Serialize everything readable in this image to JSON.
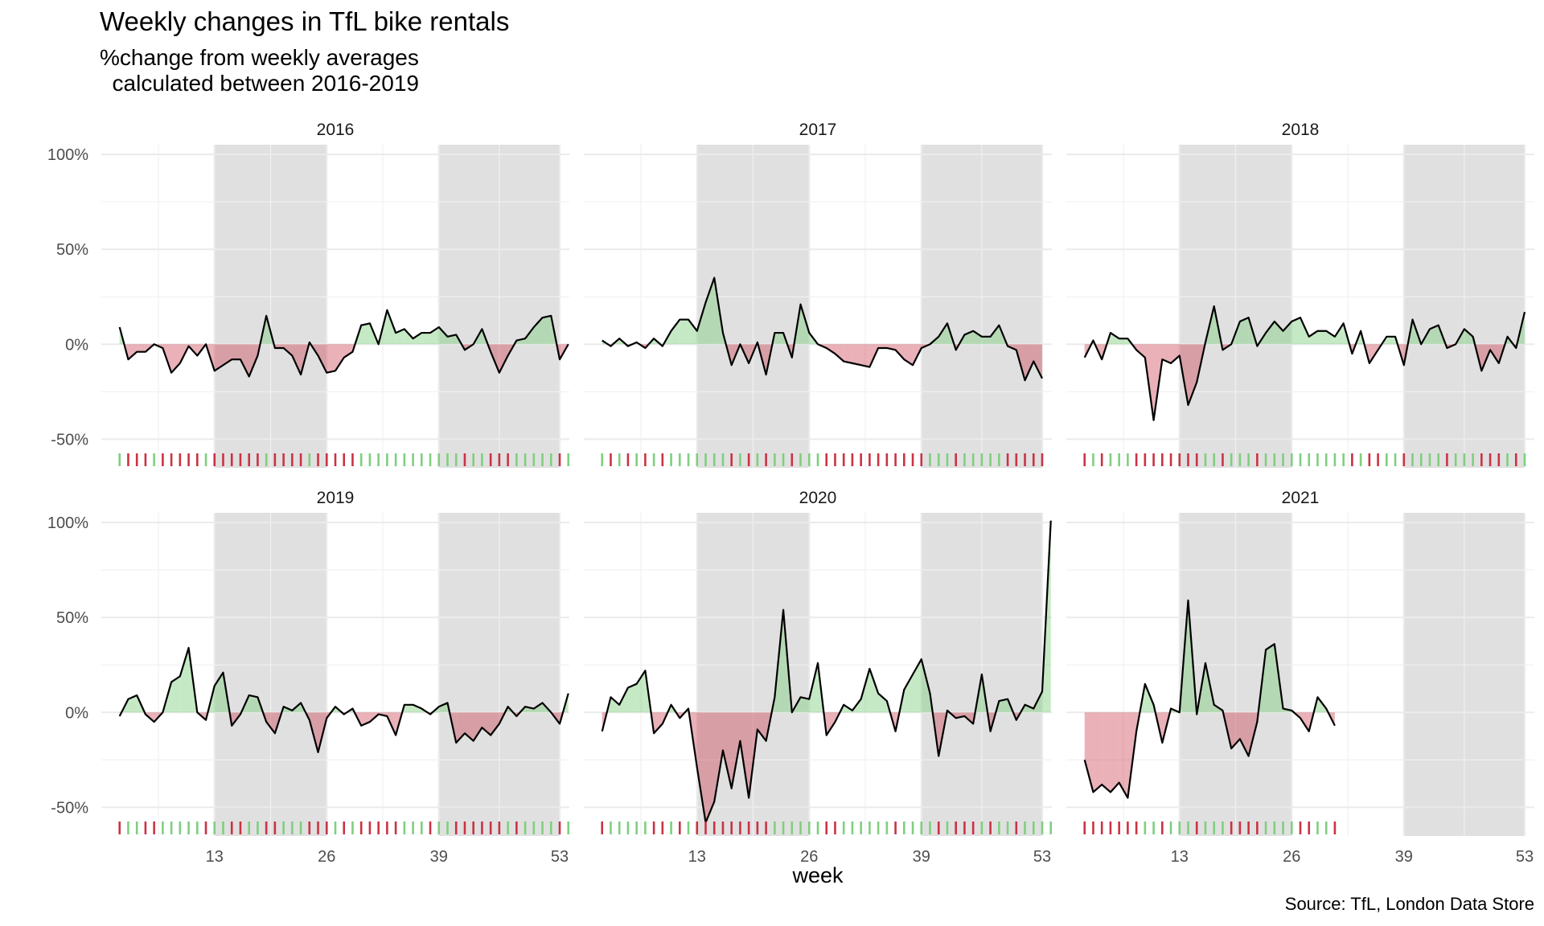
{
  "title": "Weekly changes in TfL bike rentals",
  "subtitle": "%change from weekly averages\n  calculated between 2016-2019",
  "caption": "Source: TfL, London Data Store",
  "colors": {
    "positive": "#7fcf7f",
    "negative": "#c93344",
    "shade": "#e0e0e0",
    "line": "#000000"
  },
  "chart_data": {
    "type": "area",
    "facet": "year",
    "xlabel": "week",
    "ylabel": "",
    "x_ticks": [
      13,
      26,
      39,
      53
    ],
    "y_ticks": [
      -0.5,
      0,
      0.5,
      1.0
    ],
    "y_tick_labels": [
      "-50%",
      "0%",
      "50%",
      "100%"
    ],
    "xlim": [
      1,
      53
    ],
    "ylim": [
      -0.6,
      1.0
    ],
    "shaded_week_ranges": [
      [
        13,
        26
      ],
      [
        39,
        53
      ]
    ],
    "rug": "colored by sign of weekly change (green = above average, red = below average)",
    "grid": true,
    "series": [
      {
        "name": "2016",
        "x_start": 2,
        "values": [
          0.09,
          -0.08,
          -0.04,
          -0.04,
          0.0,
          -0.02,
          -0.15,
          -0.1,
          -0.01,
          -0.06,
          0.0,
          -0.14,
          -0.11,
          -0.08,
          -0.08,
          -0.17,
          -0.06,
          0.15,
          -0.02,
          -0.02,
          -0.06,
          -0.16,
          0.01,
          -0.06,
          -0.15,
          -0.14,
          -0.07,
          -0.04,
          0.1,
          0.11,
          0.0,
          0.18,
          0.06,
          0.08,
          0.03,
          0.06,
          0.06,
          0.09,
          0.04,
          0.05,
          -0.03,
          0.0,
          0.08,
          -0.04,
          -0.15,
          -0.06,
          0.02,
          0.03,
          0.09,
          0.14,
          0.15,
          -0.08,
          0.0
        ]
      },
      {
        "name": "2017",
        "x_start": 2,
        "values": [
          0.02,
          -0.01,
          0.03,
          -0.01,
          0.01,
          -0.02,
          0.03,
          -0.01,
          0.07,
          0.13,
          0.13,
          0.07,
          0.22,
          0.35,
          0.06,
          -0.11,
          0.0,
          -0.1,
          0.01,
          -0.16,
          0.06,
          0.06,
          -0.07,
          0.21,
          0.06,
          0.0,
          -0.02,
          -0.05,
          -0.09,
          -0.1,
          -0.11,
          -0.12,
          -0.02,
          -0.02,
          -0.03,
          -0.08,
          -0.11,
          -0.02,
          0.0,
          0.04,
          0.11,
          -0.03,
          0.05,
          0.07,
          0.04,
          0.04,
          0.1,
          -0.01,
          -0.03,
          -0.19,
          -0.09,
          -0.18
        ]
      },
      {
        "name": "2018",
        "x_start": 2,
        "values": [
          -0.07,
          0.02,
          -0.08,
          0.06,
          0.03,
          0.03,
          -0.03,
          -0.07,
          -0.4,
          -0.08,
          -0.1,
          -0.06,
          -0.32,
          -0.2,
          0.01,
          0.2,
          -0.03,
          0.0,
          0.12,
          0.14,
          -0.01,
          0.06,
          0.12,
          0.07,
          0.12,
          0.14,
          0.04,
          0.07,
          0.07,
          0.04,
          0.11,
          -0.05,
          0.07,
          -0.1,
          -0.03,
          0.04,
          0.04,
          -0.11,
          0.13,
          0.0,
          0.08,
          0.1,
          -0.02,
          0.0,
          0.08,
          0.04,
          -0.14,
          -0.03,
          -0.1,
          0.04,
          -0.02,
          0.17
        ]
      },
      {
        "name": "2019",
        "x_start": 2,
        "values": [
          -0.02,
          0.07,
          0.09,
          -0.01,
          -0.05,
          0.0,
          0.16,
          0.19,
          0.34,
          0.0,
          -0.04,
          0.14,
          0.21,
          -0.07,
          -0.01,
          0.09,
          0.08,
          -0.05,
          -0.11,
          0.03,
          0.01,
          0.05,
          -0.04,
          -0.21,
          -0.03,
          0.03,
          -0.01,
          0.02,
          -0.07,
          -0.05,
          -0.01,
          -0.02,
          -0.12,
          0.04,
          0.04,
          0.02,
          -0.01,
          0.03,
          0.05,
          -0.16,
          -0.11,
          -0.15,
          -0.08,
          -0.12,
          -0.06,
          0.03,
          -0.02,
          0.03,
          0.02,
          0.05,
          0.0,
          -0.06,
          0.1
        ]
      },
      {
        "name": "2020",
        "x_start": 2,
        "values": [
          -0.1,
          0.08,
          0.04,
          0.13,
          0.15,
          0.22,
          -0.11,
          -0.06,
          0.04,
          -0.03,
          0.02,
          -0.29,
          -0.58,
          -0.47,
          -0.2,
          -0.4,
          -0.15,
          -0.45,
          -0.09,
          -0.15,
          0.08,
          0.54,
          0.0,
          0.08,
          0.07,
          0.26,
          -0.12,
          -0.05,
          0.04,
          0.01,
          0.07,
          0.23,
          0.1,
          0.06,
          -0.1,
          0.12,
          0.2,
          0.28,
          0.1,
          -0.23,
          0.01,
          -0.03,
          -0.02,
          -0.06,
          0.2,
          -0.1,
          0.06,
          0.07,
          -0.04,
          0.04,
          0.02,
          0.11,
          1.01
        ]
      },
      {
        "name": "2021",
        "x_start": 2,
        "values": [
          -0.25,
          -0.42,
          -0.38,
          -0.42,
          -0.37,
          -0.45,
          -0.1,
          0.15,
          0.04,
          -0.16,
          0.02,
          0.0,
          0.59,
          -0.01,
          0.26,
          0.04,
          0.01,
          -0.19,
          -0.14,
          -0.23,
          -0.05,
          0.33,
          0.36,
          0.02,
          0.01,
          -0.03,
          -0.1,
          0.08,
          0.02,
          -0.07
        ]
      }
    ]
  }
}
